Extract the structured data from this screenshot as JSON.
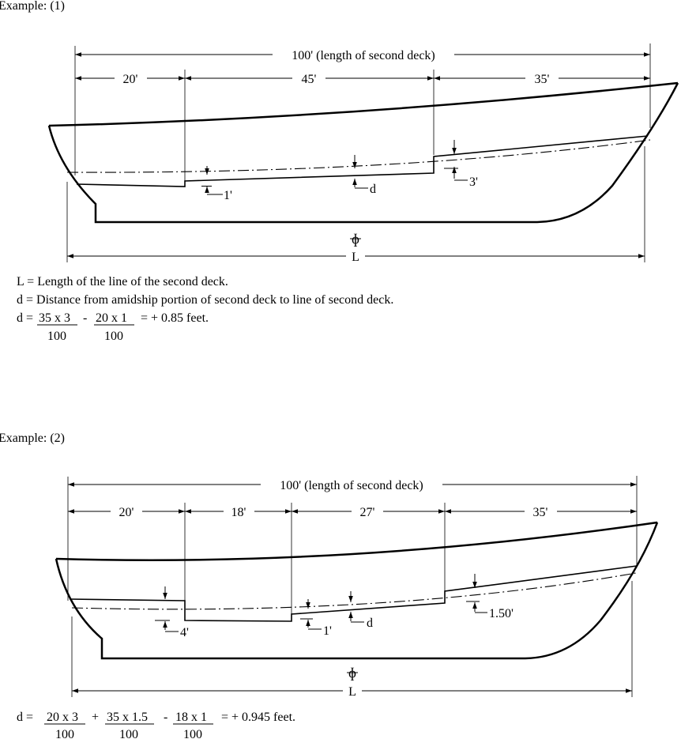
{
  "example1": {
    "heading": "Example: (1)",
    "total_dim": "100' (length of second deck)",
    "seg_dims": [
      "20'",
      "45'",
      "35'"
    ],
    "offsets": {
      "aft": "1'",
      "mid": "d",
      "fwd": "3'"
    },
    "amidships_symbol": "ɸ",
    "length_label": "L",
    "notes": {
      "line1": "L = Length of the line of the second deck.",
      "line2": "d = Distance from amidship portion of second deck to line of second deck.",
      "formula_prefix": "d =",
      "term1_num": "35 x 3",
      "term1_den": "100",
      "op1": "-",
      "term2_num": "20 x 1",
      "term2_den": "100",
      "result": "=  + 0.85 feet."
    }
  },
  "example2": {
    "heading": "Example: (2)",
    "total_dim": "100' (length of second deck)",
    "seg_dims": [
      "20'",
      "18'",
      "27'",
      "35'"
    ],
    "offsets": {
      "aft": "4'",
      "mid1": "1'",
      "mid": "d",
      "fwd": "1.50'"
    },
    "amidships_symbol": "ɸ",
    "length_label": "L",
    "formula": {
      "prefix": "d  =",
      "term1_num": "20 x 3",
      "term1_den": "100",
      "op1": "+",
      "term2_num": "35 x 1.5",
      "term2_den": "100",
      "op2": "-",
      "term3_num": "18 x 1",
      "term3_den": "100",
      "result": "=  + 0.945 feet."
    }
  }
}
